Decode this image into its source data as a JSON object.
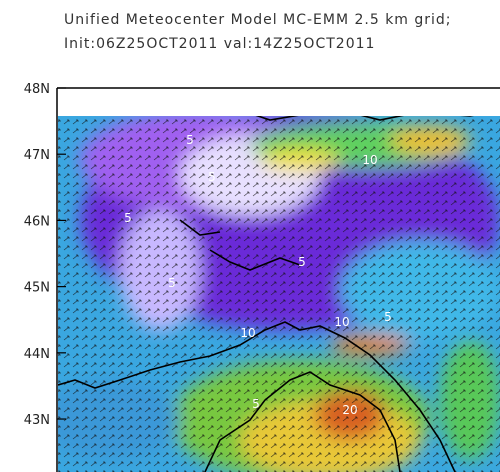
{
  "header": {
    "title": "Unified Meteocenter Model MC-EMM 2.5 km grid;",
    "subtitle": "Init:06Z25OCT2011 val:14Z25OCT2011"
  },
  "map": {
    "ylim": [
      42.2,
      48
    ],
    "lat_ticks": [
      {
        "value": 48,
        "label": "48N"
      },
      {
        "value": 47,
        "label": "47N"
      },
      {
        "value": 46,
        "label": "46N"
      },
      {
        "value": 45,
        "label": "45N"
      },
      {
        "value": 44,
        "label": "44N"
      },
      {
        "value": 43,
        "label": "43N"
      }
    ],
    "contour_labels": [
      5,
      5,
      10,
      5,
      5,
      5,
      5,
      10,
      10,
      5,
      20
    ]
  }
}
